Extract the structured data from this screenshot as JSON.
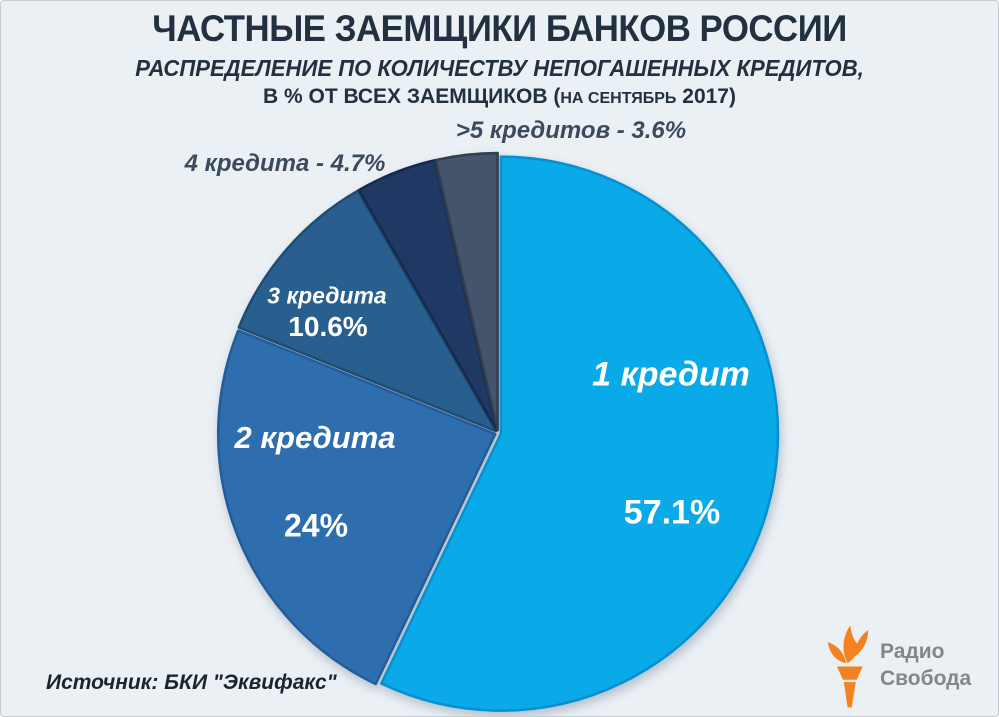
{
  "header": {
    "title": "ЧАСТНЫЕ ЗАЕМЩИКИ БАНКОВ РОССИИ",
    "subtitle_line1": "РАСПРЕДЕЛЕНИЕ ПО КОЛИЧЕСТВУ НЕПОГАШЕННЫХ КРЕДИТОВ,",
    "subtitle_line2_main": "В % ОТ ВСЕХ ЗАЕМЩИКОВ (",
    "subtitle_line2_small": "НА СЕНТЯБРЬ",
    "subtitle_line2_end": " 2017)"
  },
  "chart_data": {
    "type": "pie",
    "title": "ЧАСТНЫЕ ЗАЕМЩИКИ БАНКОВ РОССИИ",
    "subtitle": "РАСПРЕДЕЛЕНИЕ ПО КОЛИЧЕСТВУ НЕПОГАШЕННЫХ КРЕДИТОВ, В % ОТ ВСЕХ ЗАЕМЩИКОВ (на сентябрь 2017)",
    "categories": [
      "1 кредит",
      "2 кредита",
      "3 кредита",
      "4 кредита",
      ">5 кредитов"
    ],
    "values": [
      57.1,
      24,
      10.6,
      4.7,
      3.6
    ],
    "unit": "%",
    "start_angle_deg": 0,
    "direction": "clockwise",
    "legend_position": "none",
    "colors": [
      "#0AA9E8",
      "#2E6EAE",
      "#285F8E",
      "#1F3864",
      "#44546A"
    ],
    "border_colors": [
      "#078FD0",
      "#235C99",
      "#1D4C75",
      "#162A4C",
      "#323D50"
    ]
  },
  "slice_labels": {
    "one_name": "1 кредит",
    "one_value": "57.1%",
    "two_name": "2 кредита",
    "two_value": "24%",
    "three_name": "3 кредита",
    "three_value": "10.6%",
    "callout_four": "4 кредита - 4.7%",
    "callout_gt5": ">5 кредитов - 3.6%"
  },
  "footer": {
    "source": "Источник: БКИ \"Эквифакс\"",
    "logo_line1": "Радио",
    "logo_line2": "Свобода",
    "logo_flame_color": "#F58220",
    "logo_text_color": "#83868A"
  }
}
